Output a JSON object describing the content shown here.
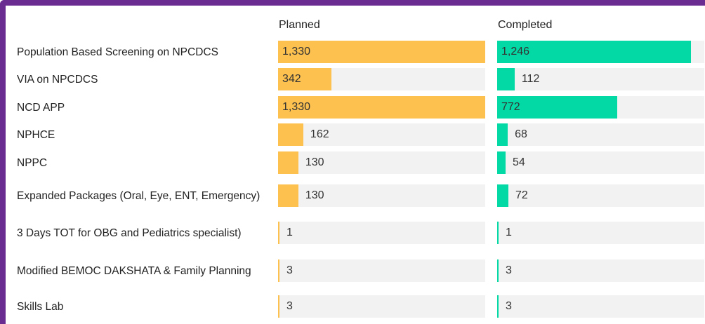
{
  "chart_data": {
    "type": "bar",
    "categories": [
      "Population Based Screening on NPCDCS",
      "VIA on NPCDCS",
      "NCD APP",
      "NPHCE",
      "NPPC",
      "Expanded Packages (Oral, Eye, ENT, Emergency)",
      "3 Days TOT for OBG and Pediatrics specialist)",
      "Modified BEMOC DAKSHATA & Family Planning",
      "Skills Lab"
    ],
    "series": [
      {
        "name": "Planned",
        "color": "#fdc14f",
        "values": [
          1330,
          342,
          1330,
          162,
          130,
          130,
          1,
          3,
          3
        ],
        "value_labels": [
          "1,330",
          "342",
          "1,330",
          "162",
          "130",
          "130",
          "1",
          "3",
          "3"
        ]
      },
      {
        "name": "Completed",
        "color": "#02d9a4",
        "values": [
          1246,
          112,
          772,
          68,
          54,
          72,
          1,
          3,
          3
        ],
        "value_labels": [
          "1,246",
          "112",
          "772",
          "68",
          "54",
          "72",
          "1",
          "3",
          "3"
        ]
      }
    ]
  }
}
